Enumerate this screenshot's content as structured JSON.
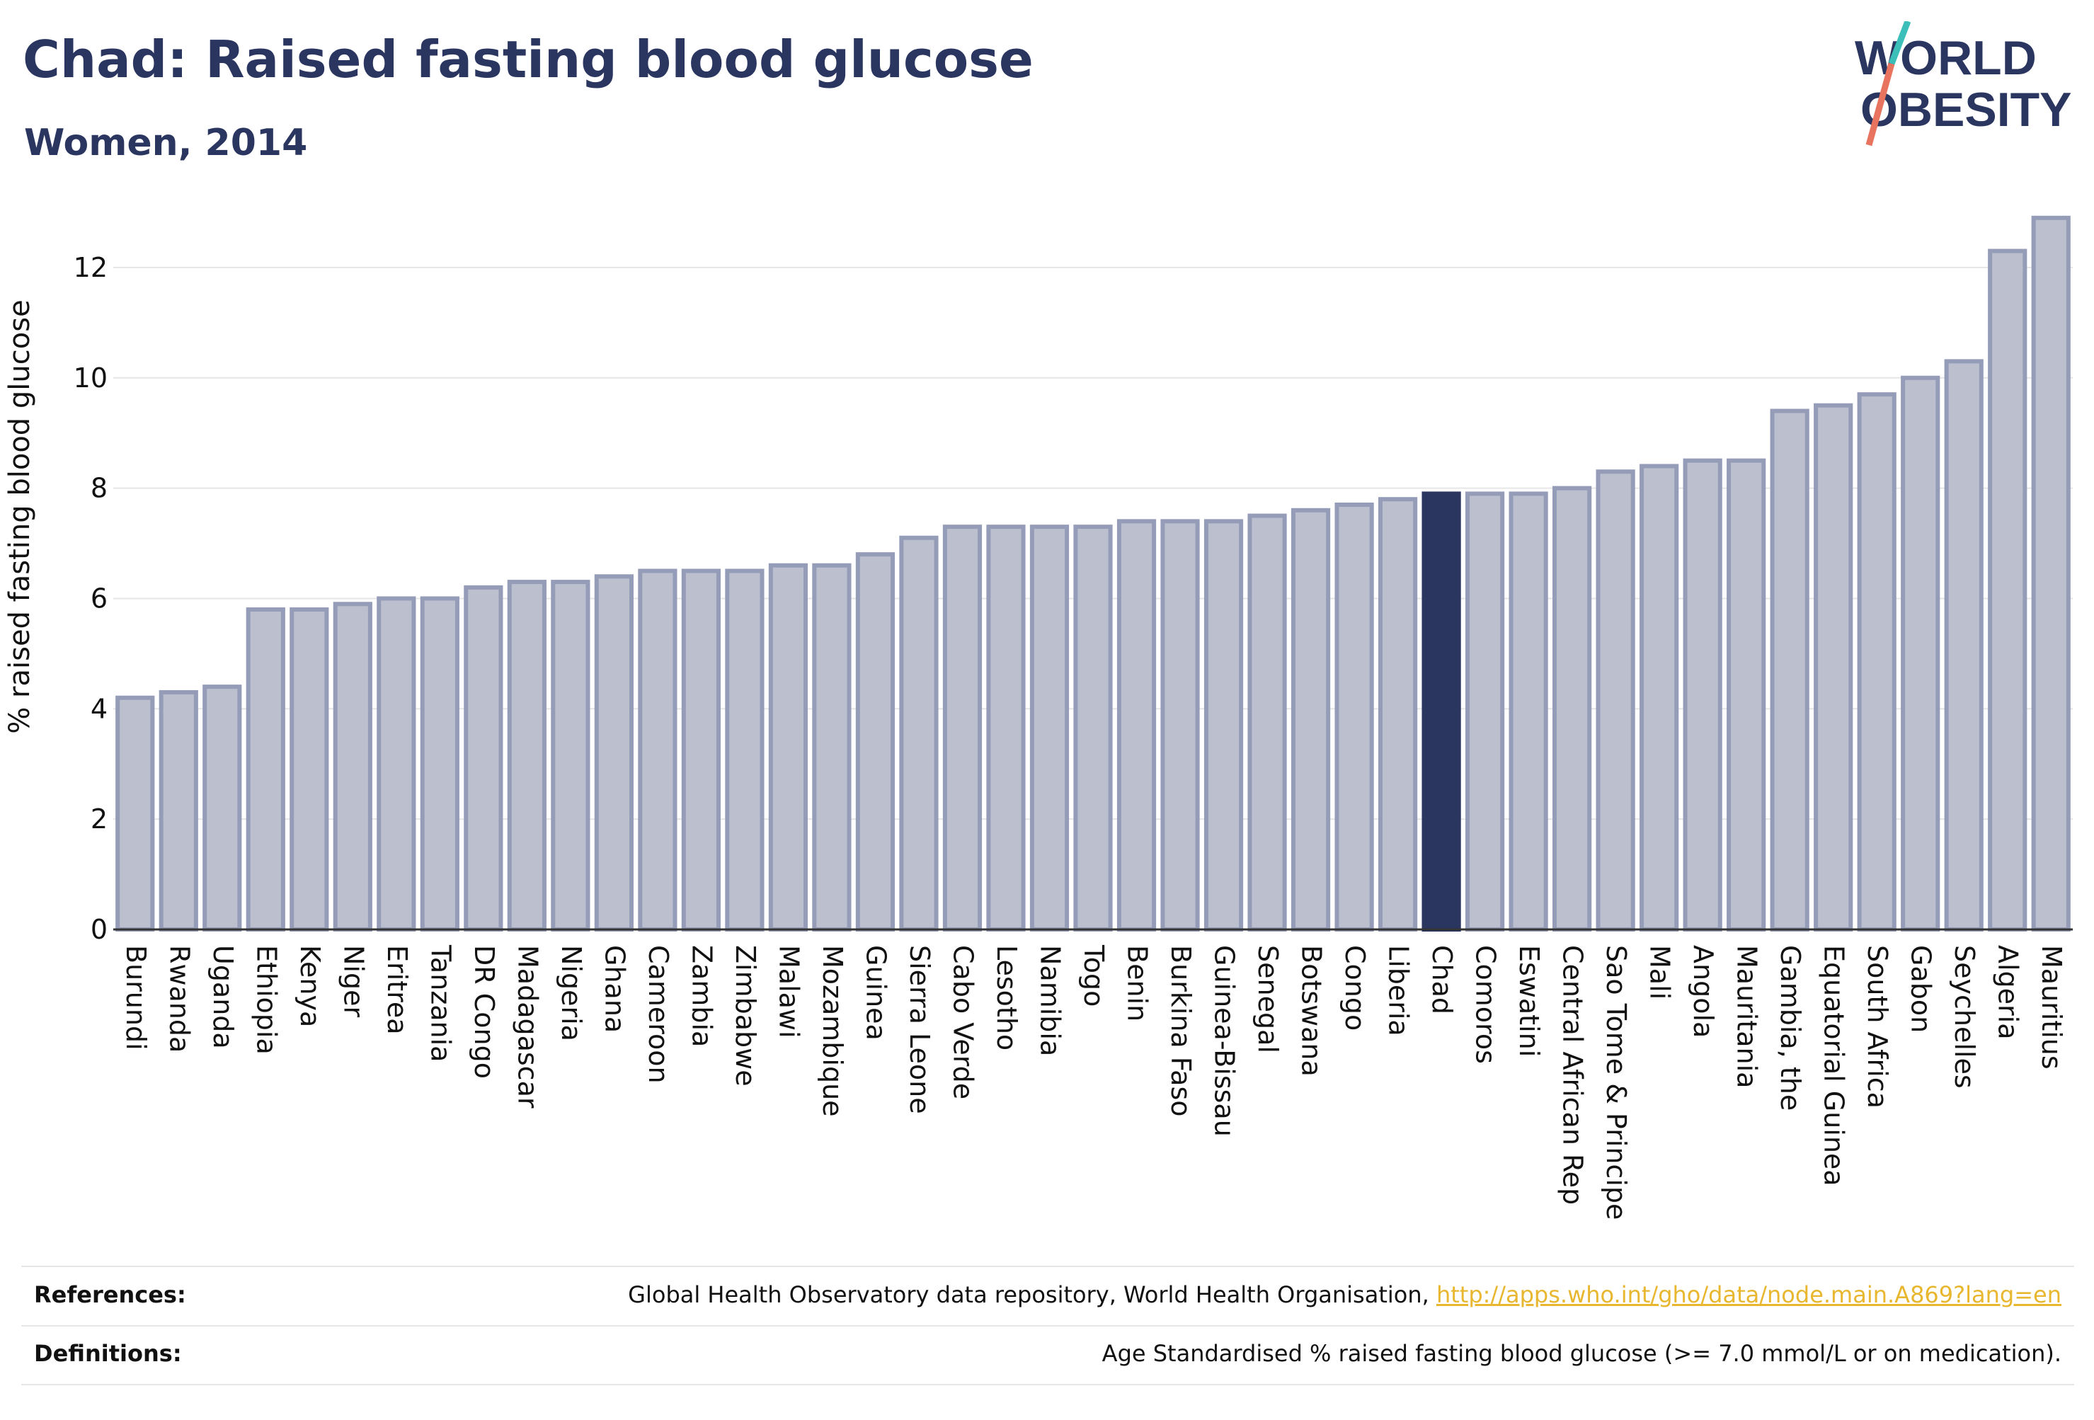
{
  "header": {
    "title": "Chad: Raised fasting blood glucose",
    "subtitle": "Women, 2014"
  },
  "logo": {
    "line1": "WORLD",
    "line2": "OBESITY",
    "brand_color": "#2a3560",
    "accent_teal": "#3cbfb9",
    "accent_coral": "#e8735e"
  },
  "colors": {
    "bar_fill": "#bcc0ce",
    "bar_stroke": "#959cb8",
    "highlight": "#2a3560",
    "gridline": "#e6e6e6"
  },
  "footer": {
    "references_label": "References:",
    "references_text": "Global Health Observatory data repository, World Health Organisation, ",
    "references_link": "http://apps.who.int/gho/data/node.main.A869?lang=en",
    "definitions_label": "Definitions:",
    "definitions_text": "Age Standardised % raised fasting blood glucose (>= 7.0 mmol/L or on medication)."
  },
  "chart_data": {
    "type": "bar",
    "ylabel": "% raised fasting blood glucose",
    "xlabel": "",
    "ylim": [
      0,
      13
    ],
    "yticks": [
      0,
      2,
      4,
      6,
      8,
      10,
      12
    ],
    "grid": true,
    "highlight": "Chad",
    "categories": [
      "Burundi",
      "Rwanda",
      "Uganda",
      "Ethiopia",
      "Kenya",
      "Niger",
      "Eritrea",
      "Tanzania",
      "DR Congo",
      "Madagascar",
      "Nigeria",
      "Ghana",
      "Cameroon",
      "Zambia",
      "Zimbabwe",
      "Malawi",
      "Mozambique",
      "Guinea",
      "Sierra Leone",
      "Cabo Verde",
      "Lesotho",
      "Namibia",
      "Togo",
      "Benin",
      "Burkina Faso",
      "Guinea-Bissau",
      "Senegal",
      "Botswana",
      "Congo",
      "Liberia",
      "Chad",
      "Comoros",
      "Eswatini",
      "Central African Rep",
      "Sao Tome & Principe",
      "Mali",
      "Angola",
      "Mauritania",
      "Gambia, the",
      "Equatorial Guinea",
      "South Africa",
      "Gabon",
      "Seychelles",
      "Algeria",
      "Mauritius"
    ],
    "values": [
      4.2,
      4.3,
      4.4,
      5.8,
      5.8,
      5.9,
      6.0,
      6.0,
      6.2,
      6.3,
      6.3,
      6.4,
      6.5,
      6.5,
      6.5,
      6.6,
      6.6,
      6.8,
      7.1,
      7.3,
      7.3,
      7.3,
      7.3,
      7.4,
      7.4,
      7.4,
      7.5,
      7.6,
      7.7,
      7.8,
      7.9,
      7.9,
      7.9,
      8.0,
      8.3,
      8.4,
      8.5,
      8.5,
      9.4,
      9.5,
      9.7,
      10.0,
      10.3,
      12.3,
      12.9
    ]
  }
}
